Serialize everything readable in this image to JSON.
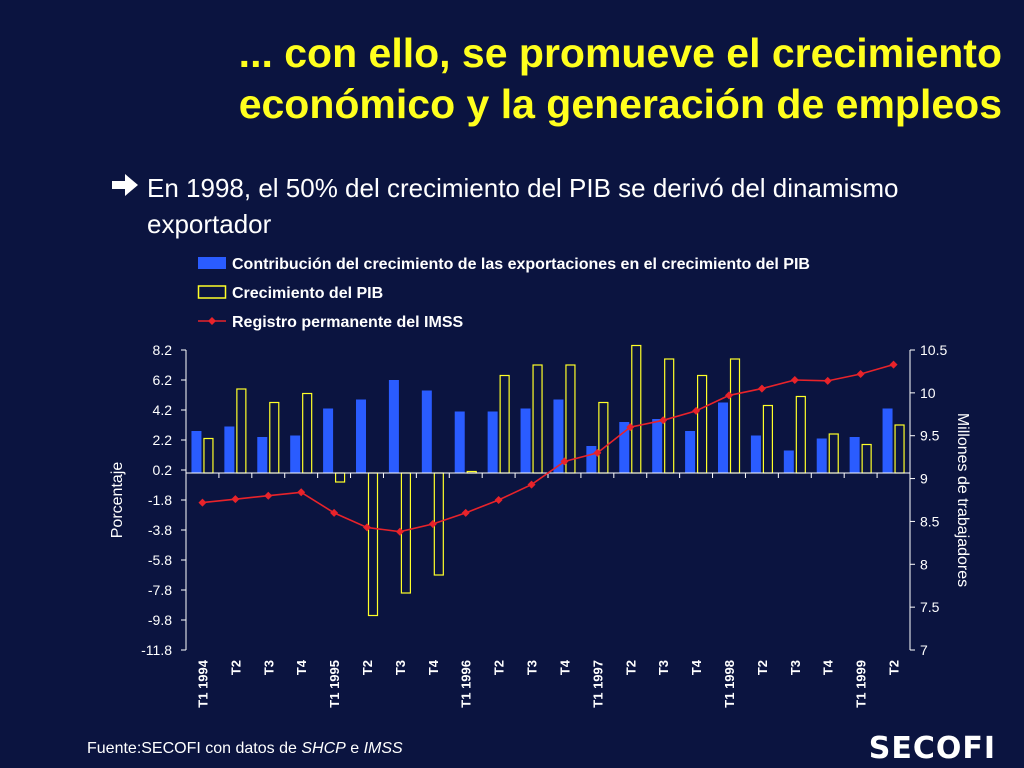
{
  "title": {
    "line1": "... con ello, se promueve el crecimiento",
    "line2": "económico y la generación de empleos"
  },
  "bullet": {
    "icon": "right-arrow-icon",
    "text": "En 1998, el 50% del crecimiento del PIB se derivó del dinamismo exportador"
  },
  "colors": {
    "background": "#0b1440",
    "title": "#ffff1e",
    "bars_export": "#2a5cff",
    "bars_pib": "#ffff28",
    "line_imss": "#e8232a"
  },
  "chart_data": {
    "type": "bar",
    "categories": [
      "T1 1994",
      "T2",
      "T3",
      "T4",
      "T1 1995",
      "T2",
      "T3",
      "T4",
      "T1 1996",
      "T2",
      "T3",
      "T4",
      "T1 1997",
      "T2",
      "T3",
      "T4",
      "T1 1998",
      "T2",
      "T3",
      "T4",
      "T1 1999",
      "T2"
    ],
    "series": [
      {
        "name": "Contribución del crecimiento de las exportaciones en el crecimiento del PIB",
        "type": "bar",
        "values": [
          2.8,
          3.1,
          2.4,
          2.5,
          4.3,
          4.9,
          6.2,
          5.5,
          4.1,
          4.1,
          4.3,
          4.9,
          1.8,
          3.4,
          3.6,
          2.8,
          4.7,
          2.5,
          1.5,
          2.3,
          2.4,
          4.3
        ]
      },
      {
        "name": "Crecimiento del PIB",
        "type": "bar",
        "values": [
          2.3,
          5.6,
          4.7,
          5.3,
          -0.6,
          -9.5,
          -8.0,
          -6.8,
          0.1,
          6.5,
          7.2,
          7.2,
          4.7,
          8.5,
          7.6,
          6.5,
          7.6,
          4.5,
          5.1,
          2.6,
          1.9,
          3.2
        ]
      },
      {
        "name": "Registro permanente del IMSS",
        "type": "line",
        "axis": "right",
        "values": [
          8.72,
          8.76,
          8.8,
          8.84,
          8.6,
          8.43,
          8.38,
          8.47,
          8.6,
          8.75,
          8.93,
          9.2,
          9.3,
          9.6,
          9.68,
          9.79,
          9.97,
          10.05,
          10.15,
          10.14,
          10.22,
          10.33
        ]
      }
    ],
    "yleft": {
      "label": "Porcentaje",
      "ticks": [
        "8.2",
        "6.2",
        "4.2",
        "2.2",
        "0.2",
        "-1.8",
        "-3.8",
        "-5.8",
        "-7.8",
        "-9.8",
        "-11.8"
      ],
      "min": -11.8,
      "max": 8.2
    },
    "yright": {
      "label": "Millones de trabajadores",
      "ticks": [
        "10.5",
        "10",
        "9.5",
        "9",
        "8.5",
        "8",
        "7.5",
        "7"
      ],
      "min": 7,
      "max": 10.5
    },
    "legend_position": "top",
    "grid": false
  },
  "source": {
    "prefix": "Fuente:SECOFI  con datos de ",
    "shcp": "SHCP",
    "joiner": " e ",
    "imss": "IMSS"
  },
  "logo": {
    "text": "SECOFI"
  }
}
